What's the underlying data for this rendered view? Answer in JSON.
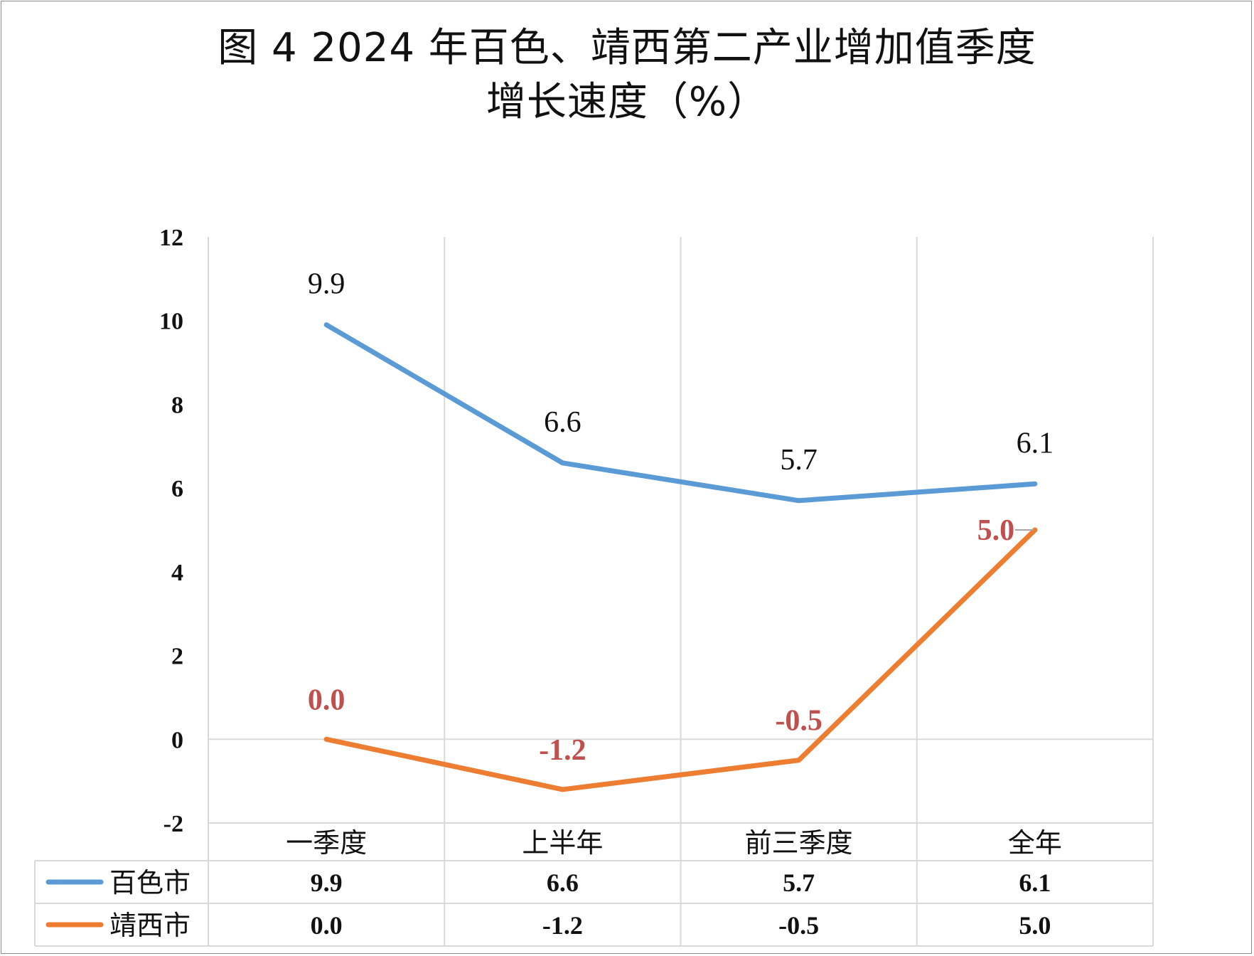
{
  "chart_data": {
    "type": "line",
    "title_line1": "图 4  2024 年百色、靖西第二产业增加值季度",
    "title_line2": "增长速度（%）",
    "categories": [
      "一季度",
      "上半年",
      "前三季度",
      "全年"
    ],
    "series": [
      {
        "name": "百色市",
        "values": [
          9.9,
          6.6,
          5.7,
          6.1
        ],
        "labels": [
          "9.9",
          "6.6",
          "5.7",
          "6.1"
        ],
        "color": "#5b9bd5",
        "label_color": "#111111"
      },
      {
        "name": "靖西市",
        "values": [
          0.0,
          -1.2,
          -0.5,
          5.0
        ],
        "labels": [
          "0.0",
          "-1.2",
          "-0.5",
          "5.0"
        ],
        "color": "#ed7d31",
        "label_color": "#c0504d"
      }
    ],
    "ylim": [
      -2,
      12
    ],
    "yticks": [
      "-2",
      "0",
      "2",
      "4",
      "6",
      "8",
      "10",
      "12"
    ],
    "grid": true,
    "data_table": true,
    "xlabel": "",
    "ylabel": ""
  }
}
